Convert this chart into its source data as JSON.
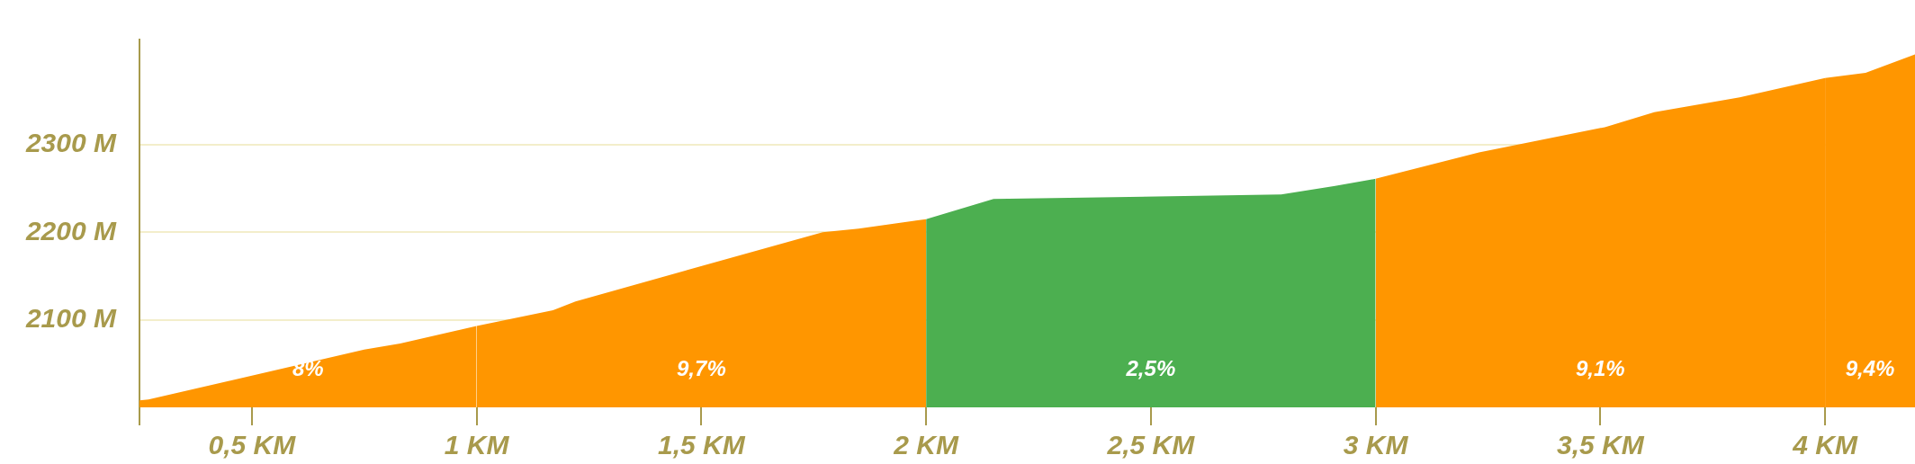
{
  "chart_data": {
    "type": "area",
    "xlim": [
      0.25,
      4.2
    ],
    "ylim": [
      2000,
      2420
    ],
    "xticks": [
      {
        "value": 0.25,
        "label": null
      },
      {
        "value": 0.5,
        "label": "0,5 KM"
      },
      {
        "value": 1,
        "label": "1 KM"
      },
      {
        "value": 1.5,
        "label": "1,5 KM"
      },
      {
        "value": 2,
        "label": "2 KM"
      },
      {
        "value": 2.5,
        "label": "2,5 KM"
      },
      {
        "value": 3,
        "label": "3 KM"
      },
      {
        "value": 3.5,
        "label": "3,5 KM"
      },
      {
        "value": 4,
        "label": "4 KM"
      }
    ],
    "yticks": [
      {
        "value": 2100,
        "label": "2100 M"
      },
      {
        "value": 2200,
        "label": "2200 M"
      },
      {
        "value": 2300,
        "label": "2300 M"
      }
    ],
    "grid": "y",
    "series": [
      {
        "color": "#ff9600",
        "x": [
          0.25,
          0.27,
          0.75,
          0.83,
          1.0
        ],
        "values": [
          2008,
          2009,
          2066,
          2073,
          2093
        ]
      },
      {
        "color": "#ff9600",
        "x": [
          1.0,
          1.17,
          1.22,
          1.77,
          1.85,
          2.0
        ],
        "values": [
          2093,
          2111,
          2121,
          2200,
          2204,
          2215
        ]
      },
      {
        "color": "#4caf50",
        "x": [
          2.0,
          2.15,
          2.79,
          2.91,
          3.0
        ],
        "values": [
          2215,
          2238,
          2243,
          2253,
          2261
        ]
      },
      {
        "color": "#ff9600",
        "x": [
          3.0,
          3.23,
          3.51,
          3.62,
          3.81,
          4.0
        ],
        "values": [
          2261,
          2291,
          2320,
          2337,
          2354,
          2376
        ]
      },
      {
        "color": "#ff9600",
        "x": [
          4.0,
          4.09,
          4.2
        ],
        "values": [
          2376,
          2382,
          2403
        ]
      }
    ],
    "annotations": [
      "8%",
      "9,7%",
      "2,5%",
      "9,1%",
      "9,4%"
    ]
  }
}
